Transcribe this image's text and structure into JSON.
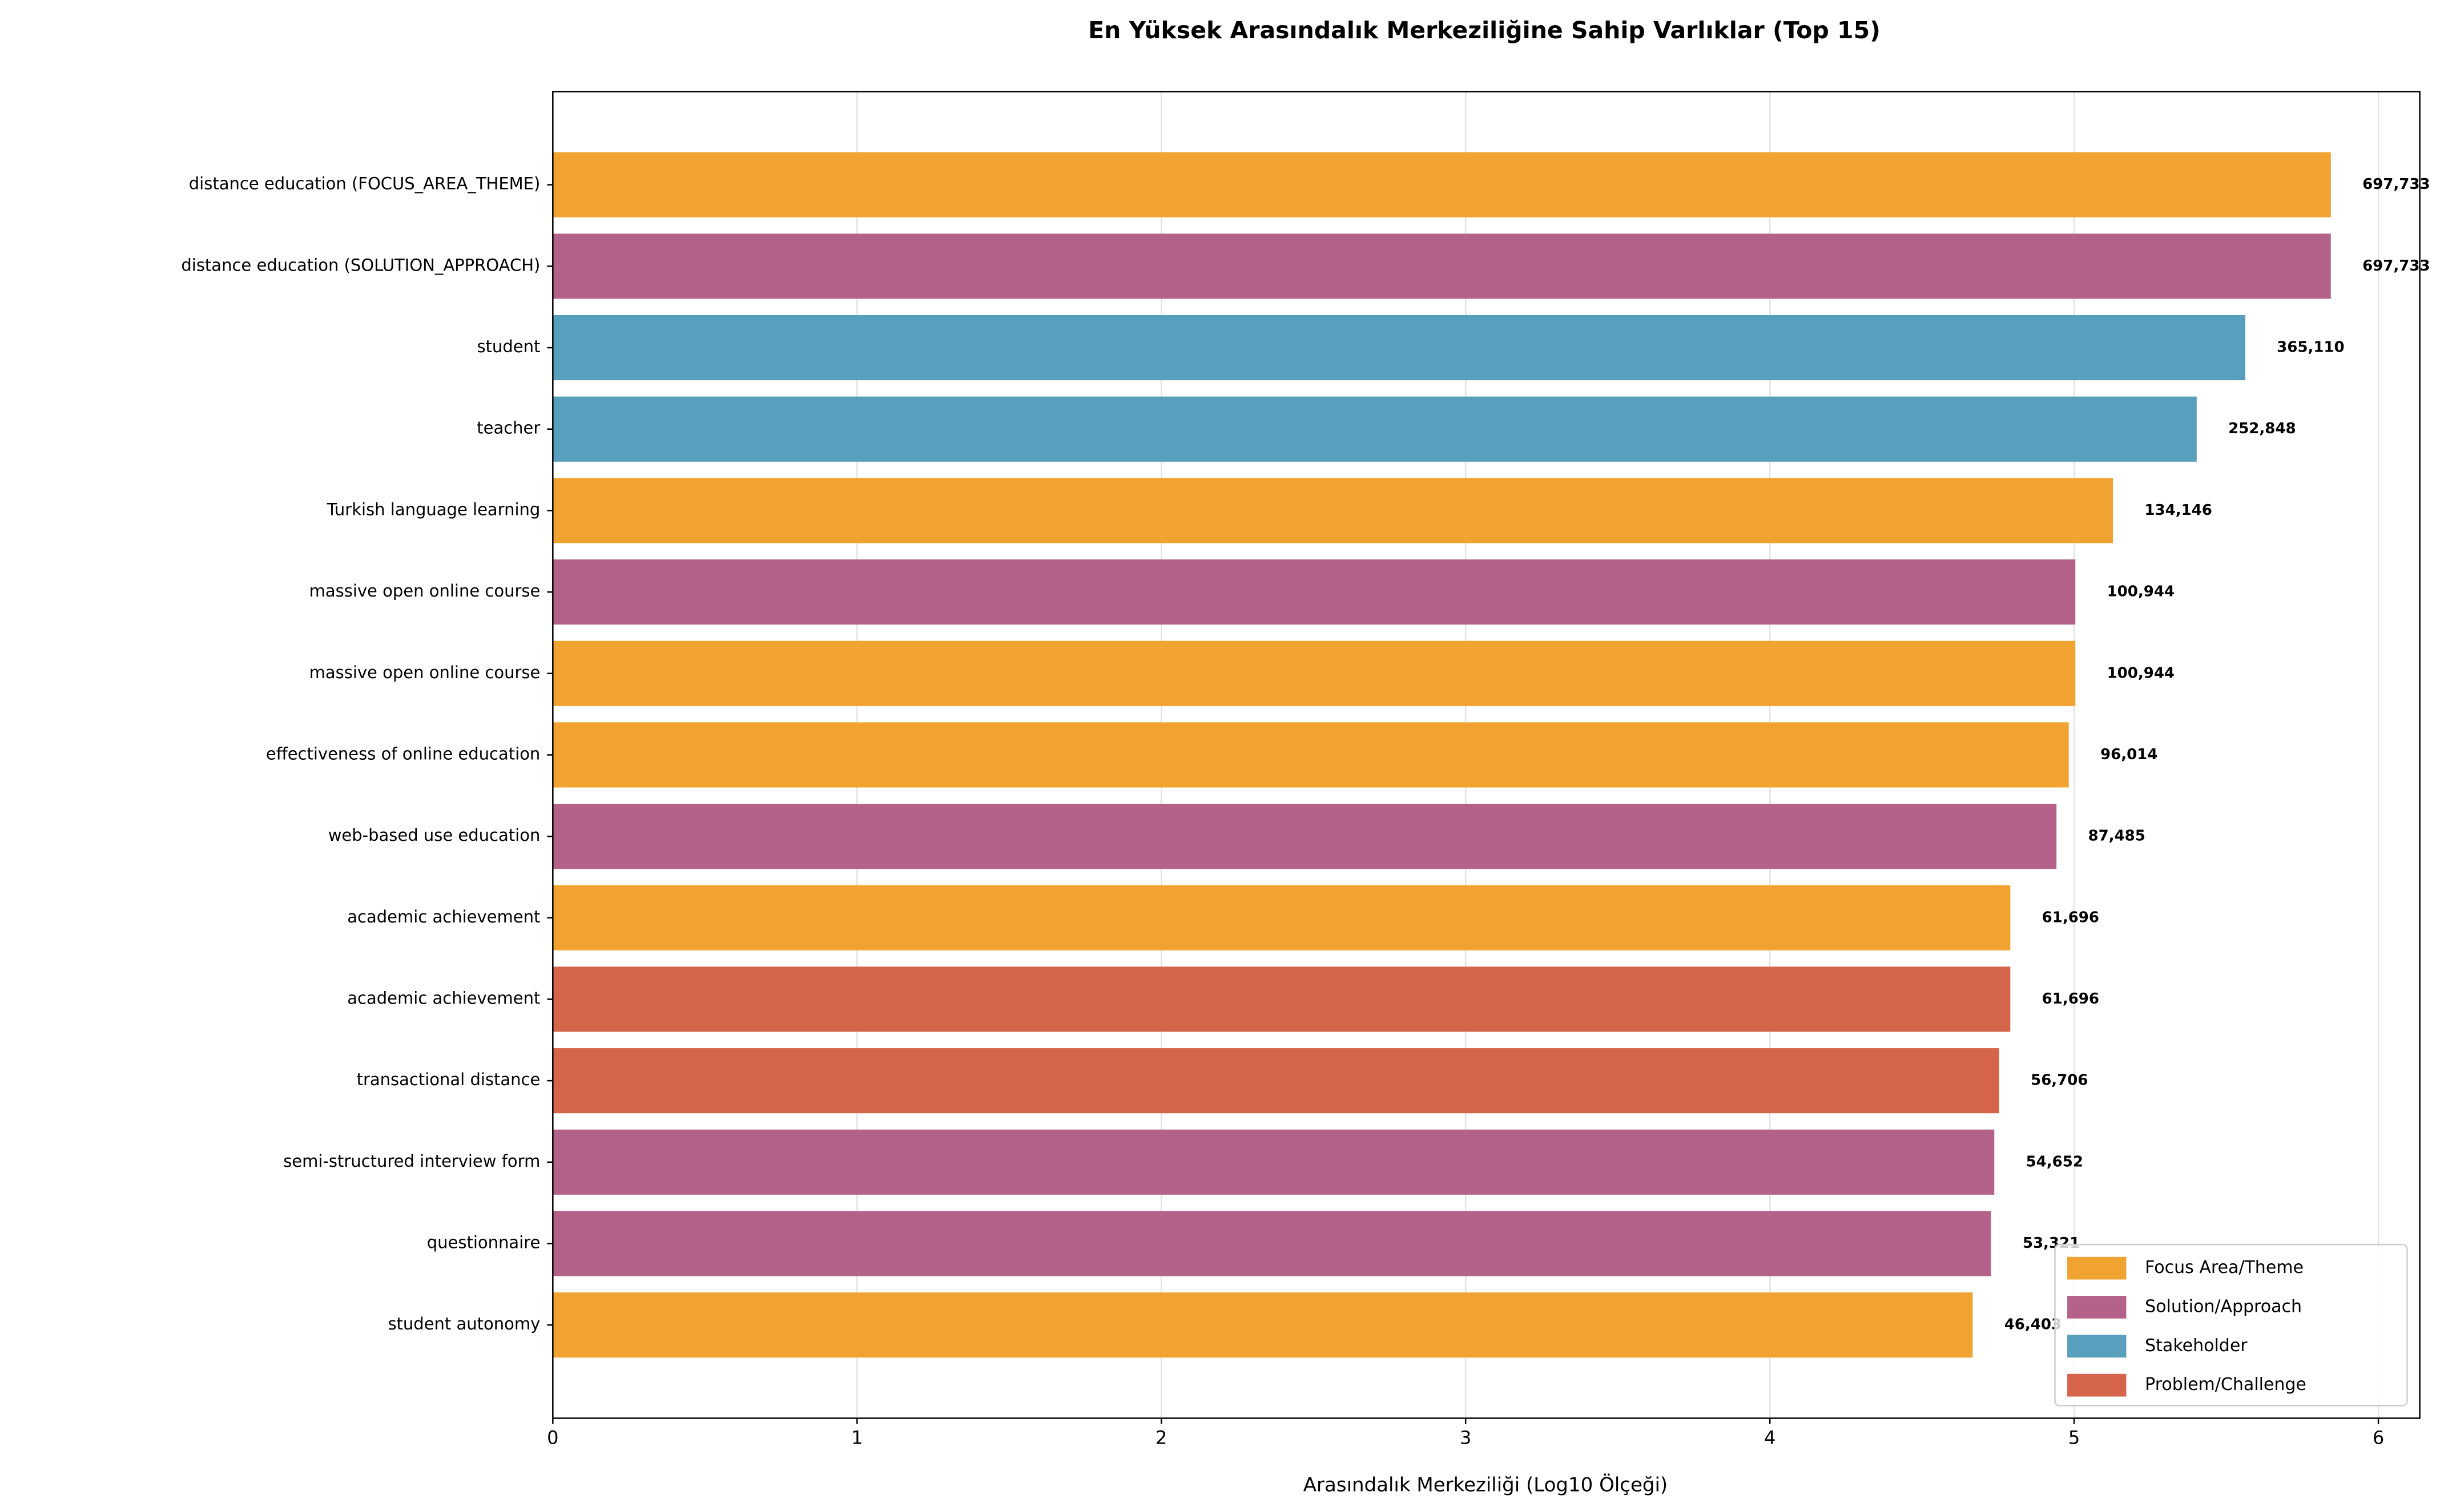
{
  "chart_data": {
    "type": "bar",
    "orientation": "horizontal",
    "title": "En Yüksek Arasındalık Merkeziliğine Sahip Varlıklar (Top 15)",
    "x_label": "Arasındalık Merkeziliği (Log10 Ölçeği)",
    "categories": [
      "distance education (FOCUS_AREA_THEME)",
      "distance education (SOLUTION_APPROACH)",
      "student",
      "teacher",
      "Turkish language learning",
      "massive open online course",
      "massive open online course",
      "effectiveness of online education",
      "web-based use education",
      "academic achievement",
      "academic achievement",
      "transactional distance",
      "semi-structured interview form",
      "questionnaire",
      "student autonomy"
    ],
    "values": [
      5.84369,
      5.84369,
      5.56243,
      5.40286,
      5.12758,
      5.00408,
      5.00408,
      4.98234,
      4.94194,
      4.79026,
      4.79026,
      4.75363,
      4.73761,
      4.72689,
      4.66655
    ],
    "value_labels": [
      "697,733",
      "697,733",
      "365,110",
      "252,848",
      "134,146",
      "100,944",
      "100,944",
      "96,014",
      "87,485",
      "61,696",
      "61,696",
      "56,706",
      "54,652",
      "53,321",
      "46,403"
    ],
    "colors": [
      "#f0a330",
      "#b5628a",
      "#589ebd",
      "#589ebd",
      "#f0a330",
      "#b5628a",
      "#f0a330",
      "#f0a330",
      "#b5628a",
      "#f0a330",
      "#d4654a",
      "#d4654a",
      "#b5628a",
      "#b5628a",
      "#f0a330"
    ],
    "legend": [
      {
        "name": "Focus Area/Theme",
        "color": "#f0a330"
      },
      {
        "name": "Solution/Approach",
        "color": "#b5628a"
      },
      {
        "name": "Stakeholder",
        "color": "#589ebd"
      },
      {
        "name": "Problem/Challenge",
        "color": "#d4654a"
      }
    ],
    "legend_position": "lower right",
    "xlim": [
      0,
      6.136
    ],
    "xticks": [
      0,
      1,
      2,
      3,
      4,
      5,
      6
    ],
    "grid": true
  }
}
